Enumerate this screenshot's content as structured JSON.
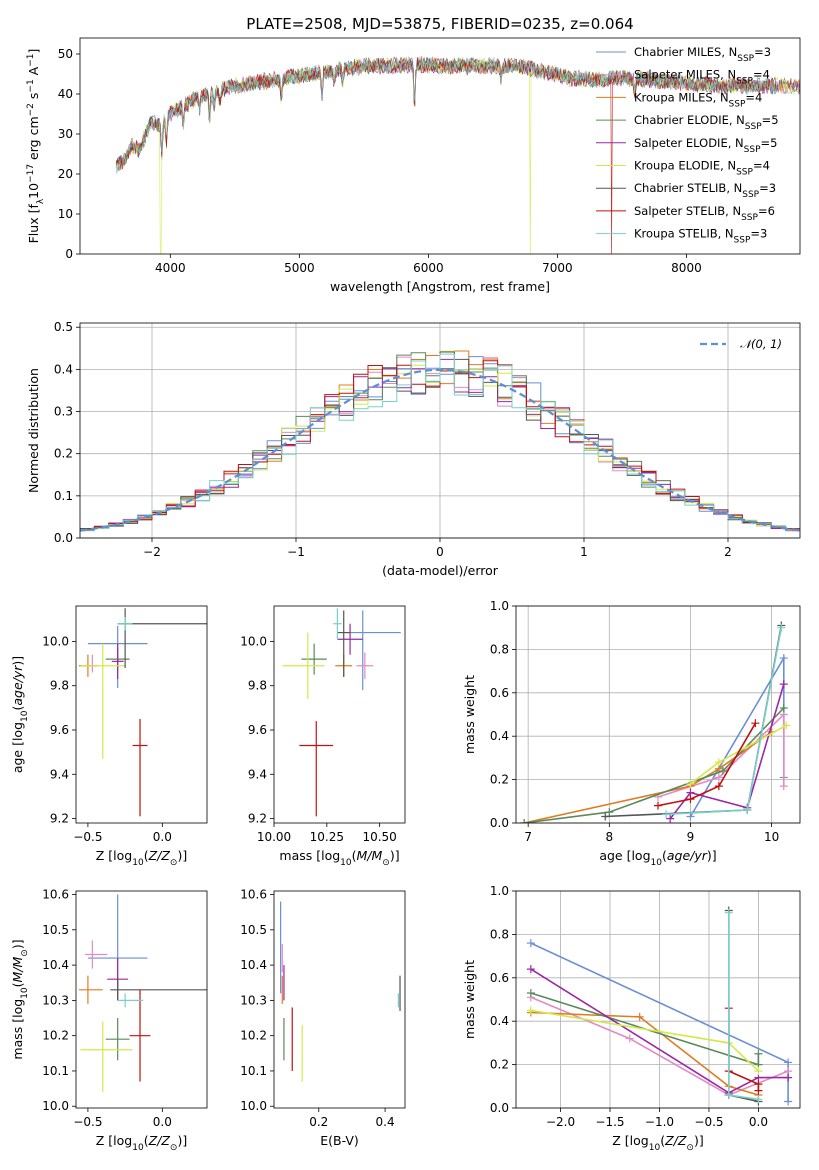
{
  "figure_title": "PLATE=2508, MJD=53875, FIBERID=0235, z=0.064",
  "colors": {
    "Chabrier MILES": "#6a8fd8",
    "Salpeter MILES": "#e28bc6",
    "Kroupa MILES": "#e07b22",
    "Chabrier ELODIE": "#5a8a5a",
    "Salpeter ELODIE": "#9c27a8",
    "Kroupa ELODIE": "#d4e84a",
    "Chabrier STELIB": "#555555",
    "Salpeter STELIB": "#c0110f",
    "Kroupa STELIB": "#77d1c9"
  },
  "chart_data": [
    {
      "id": "spectrum",
      "type": "line",
      "title": "PLATE=2508, MJD=53875, FIBERID=0235, z=0.064",
      "xlabel": "wavelength [Angstrom, rest frame]",
      "ylabel": "Flux [f_λ10^-17 erg cm^-2 s^-1 A^-1]",
      "xlim": [
        3300,
        8880
      ],
      "ylim": [
        0,
        54
      ],
      "xticks": [
        4000,
        5000,
        6000,
        7000,
        8000
      ],
      "yticks": [
        0,
        10,
        20,
        30,
        40,
        50
      ],
      "grid": false,
      "legend_position": "top-right",
      "legend": [
        {
          "name": "Chabrier MILES",
          "nssp": "3"
        },
        {
          "name": "Salpeter MILES",
          "nssp": "4"
        },
        {
          "name": "Kroupa MILES",
          "nssp": "4"
        },
        {
          "name": "Chabrier ELODIE",
          "nssp": "5"
        },
        {
          "name": "Salpeter ELODIE",
          "nssp": "5"
        },
        {
          "name": "Kroupa ELODIE",
          "nssp": "4"
        },
        {
          "name": "Chabrier STELIB",
          "nssp": "3"
        },
        {
          "name": "Salpeter STELIB",
          "nssp": "6"
        },
        {
          "name": "Kroupa STELIB",
          "nssp": "3"
        }
      ],
      "continuum": [
        [
          3580,
          22
        ],
        [
          3650,
          24
        ],
        [
          3700,
          27
        ],
        [
          3760,
          26
        ],
        [
          3850,
          33
        ],
        [
          3930,
          32
        ],
        [
          4000,
          35
        ],
        [
          4100,
          37
        ],
        [
          4200,
          39
        ],
        [
          4300,
          40
        ],
        [
          4500,
          42
        ],
        [
          4700,
          43
        ],
        [
          4900,
          44
        ],
        [
          5100,
          45
        ],
        [
          5300,
          46
        ],
        [
          5500,
          47
        ],
        [
          5700,
          47
        ],
        [
          5900,
          47.5
        ],
        [
          6100,
          47
        ],
        [
          6300,
          47
        ],
        [
          6500,
          47
        ],
        [
          6700,
          47
        ],
        [
          6900,
          45.5
        ],
        [
          7100,
          44
        ],
        [
          7300,
          43.5
        ],
        [
          7500,
          44
        ],
        [
          7700,
          43.5
        ],
        [
          7900,
          43
        ],
        [
          8100,
          42.5
        ],
        [
          8300,
          42
        ],
        [
          8500,
          42
        ],
        [
          8800,
          42
        ]
      ],
      "absorption_lines": [
        [
          3934,
          7
        ],
        [
          3969,
          6
        ],
        [
          4102,
          5
        ],
        [
          4227,
          3
        ],
        [
          4304,
          6
        ],
        [
          4340,
          4
        ],
        [
          4384,
          3
        ],
        [
          4861,
          5
        ],
        [
          5175,
          6
        ],
        [
          5270,
          3
        ],
        [
          5335,
          3
        ],
        [
          5893,
          10
        ],
        [
          6563,
          3
        ],
        [
          7600,
          3
        ]
      ]
    },
    {
      "id": "residuals",
      "type": "line",
      "xlabel": "(data-model)/error",
      "ylabel": "Normed distribution",
      "xlim": [
        -2.5,
        2.5
      ],
      "ylim": [
        0,
        0.51
      ],
      "xticks": [
        -2,
        -1,
        0,
        1,
        2
      ],
      "yticks": [
        0.0,
        0.1,
        0.2,
        0.3,
        0.4,
        0.5
      ],
      "grid": true,
      "legend": "𝒩(0, 1)",
      "legend_position": "top-right"
    },
    {
      "id": "age_vs_Z",
      "type": "scatter",
      "xlabel": "Z [log10(Z/Z⊙)]",
      "ylabel": "age [log10(age/yr)]",
      "xlim": [
        -0.58,
        0.3
      ],
      "ylim": [
        9.18,
        10.16
      ],
      "xticks": [
        -0.5,
        0.0
      ],
      "yticks": [
        9.2,
        9.4,
        9.6,
        9.8,
        10.0
      ],
      "points": [
        {
          "name": "Chabrier MILES",
          "x": -0.3,
          "y": 9.99,
          "xerr": [
            0.2,
            0.2
          ],
          "yerr": [
            0.2,
            0.08
          ]
        },
        {
          "name": "Salpeter MILES",
          "x": -0.47,
          "y": 9.89,
          "xerr": [
            0.05,
            0.03
          ],
          "yerr": [
            0.03,
            0.05
          ]
        },
        {
          "name": "Kroupa MILES",
          "x": -0.5,
          "y": 9.89,
          "xerr": [
            0.06,
            0.06
          ],
          "yerr": [
            0.05,
            0.05
          ]
        },
        {
          "name": "Chabrier ELODIE",
          "x": -0.3,
          "y": 9.92,
          "xerr": [
            0.08,
            0.08
          ],
          "yerr": [
            0.05,
            0.05
          ]
        },
        {
          "name": "Salpeter ELODIE",
          "x": -0.3,
          "y": 9.91,
          "xerr": [
            0.04,
            0.04
          ],
          "yerr": [
            0.08,
            0.08
          ]
        },
        {
          "name": "Kroupa ELODIE",
          "x": -0.4,
          "y": 9.89,
          "xerr": [
            0.15,
            0.15
          ],
          "yerr": [
            0.42,
            0.1
          ]
        },
        {
          "name": "Chabrier STELIB",
          "x": -0.25,
          "y": 10.08,
          "xerr": [
            0.05,
            0.55
          ],
          "yerr": [
            0.2,
            0.07
          ]
        },
        {
          "name": "Salpeter STELIB",
          "x": -0.15,
          "y": 9.53,
          "xerr": [
            0.05,
            0.05
          ],
          "yerr": [
            0.32,
            0.12
          ]
        },
        {
          "name": "Kroupa STELIB",
          "x": -0.25,
          "y": 10.08,
          "xerr": [
            0.05,
            0.05
          ],
          "yerr": [
            0.03,
            0.03
          ]
        }
      ]
    },
    {
      "id": "age_vs_mass",
      "type": "scatter",
      "xlabel": "mass [log10(M/M⊙)]",
      "ylabel": "",
      "xlim": [
        10.0,
        10.62
      ],
      "ylim": [
        9.18,
        10.16
      ],
      "xticks": [
        10.0,
        10.25,
        10.5
      ],
      "yticks": [
        9.2,
        9.4,
        9.6,
        9.8,
        10.0
      ],
      "points": [
        {
          "name": "Chabrier MILES",
          "x": 10.42,
          "y": 10.04,
          "xerr": [
            0.08,
            0.18
          ],
          "yerr": [
            0.26,
            0.1
          ]
        },
        {
          "name": "Salpeter MILES",
          "x": 10.43,
          "y": 9.89,
          "xerr": [
            0.04,
            0.04
          ],
          "yerr": [
            0.06,
            0.06
          ]
        },
        {
          "name": "Kroupa MILES",
          "x": 10.33,
          "y": 9.89,
          "xerr": [
            0.04,
            0.04
          ],
          "yerr": [
            0.05,
            0.05
          ]
        },
        {
          "name": "Chabrier ELODIE",
          "x": 10.19,
          "y": 9.92,
          "xerr": [
            0.06,
            0.06
          ],
          "yerr": [
            0.07,
            0.07
          ]
        },
        {
          "name": "Salpeter ELODIE",
          "x": 10.36,
          "y": 10.01,
          "xerr": [
            0.06,
            0.06
          ],
          "yerr": [
            0.07,
            0.07
          ]
        },
        {
          "name": "Kroupa ELODIE",
          "x": 10.16,
          "y": 9.89,
          "xerr": [
            0.12,
            0.08
          ],
          "yerr": [
            0.15,
            0.15
          ]
        },
        {
          "name": "Chabrier STELIB",
          "x": 10.33,
          "y": 10.04,
          "xerr": [
            0.03,
            0.03
          ],
          "yerr": [
            0.2,
            0.1
          ]
        },
        {
          "name": "Salpeter STELIB",
          "x": 10.2,
          "y": 9.53,
          "xerr": [
            0.08,
            0.08
          ],
          "yerr": [
            0.32,
            0.11
          ]
        },
        {
          "name": "Kroupa STELIB",
          "x": 10.3,
          "y": 10.08,
          "xerr": [
            0.02,
            0.02
          ],
          "yerr": [
            0.07,
            0.07
          ]
        }
      ]
    },
    {
      "id": "weight_vs_age",
      "type": "line",
      "xlabel": "age [log10(age/yr)]",
      "ylabel": "mass weight",
      "xlim": [
        6.85,
        10.35
      ],
      "ylim": [
        0,
        1
      ],
      "xticks": [
        7,
        8,
        9,
        10
      ],
      "yticks": [
        0.0,
        0.2,
        0.4,
        0.6,
        0.8,
        1.0
      ],
      "grid": true,
      "series": [
        {
          "name": "Chabrier MILES",
          "x": [
            9.0,
            10.15,
            10.15
          ],
          "y": [
            0.03,
            0.76,
            0.21
          ]
        },
        {
          "name": "Salpeter MILES",
          "x": [
            8.6,
            9.35,
            10.15,
            10.15
          ],
          "y": [
            0.12,
            0.21,
            0.5,
            0.17
          ]
        },
        {
          "name": "Kroupa MILES",
          "x": [
            6.95,
            9.0,
            9.35,
            10.0
          ],
          "y": [
            0.0,
            0.17,
            0.25,
            0.42
          ]
        },
        {
          "name": "Chabrier ELODIE",
          "x": [
            6.95,
            8.0,
            9.4,
            10.15
          ],
          "y": [
            0.0,
            0.05,
            0.24,
            0.53
          ]
        },
        {
          "name": "Salpeter ELODIE",
          "x": [
            8.75,
            9.0,
            9.7,
            10.15
          ],
          "y": [
            0.02,
            0.14,
            0.07,
            0.64
          ]
        },
        {
          "name": "Kroupa ELODIE",
          "x": [
            9.0,
            9.35,
            10.18
          ],
          "y": [
            0.18,
            0.28,
            0.45
          ]
        },
        {
          "name": "Chabrier STELIB",
          "x": [
            7.95,
            9.7,
            10.12
          ],
          "y": [
            0.03,
            0.06,
            0.91
          ]
        },
        {
          "name": "Salpeter STELIB",
          "x": [
            8.6,
            9.0,
            9.35,
            9.8
          ],
          "y": [
            0.08,
            0.11,
            0.17,
            0.46
          ]
        },
        {
          "name": "Kroupa STELIB",
          "x": [
            8.7,
            9.7,
            10.12
          ],
          "y": [
            0.04,
            0.06,
            0.9
          ]
        }
      ]
    },
    {
      "id": "mass_vs_Z",
      "type": "scatter",
      "xlabel": "Z [log10(Z/Z⊙)]",
      "ylabel": "mass [log10(M/M⊙)]",
      "xlim": [
        -0.58,
        0.3
      ],
      "ylim": [
        9.995,
        10.61
      ],
      "xticks": [
        -0.5,
        0.0
      ],
      "yticks": [
        10.0,
        10.1,
        10.2,
        10.3,
        10.4,
        10.5,
        10.6
      ],
      "points": [
        {
          "name": "Chabrier MILES",
          "x": -0.3,
          "y": 10.42,
          "xerr": [
            0.2,
            0.2
          ],
          "yerr": [
            0.08,
            0.18
          ]
        },
        {
          "name": "Salpeter MILES",
          "x": -0.47,
          "y": 10.43,
          "xerr": [
            0.05,
            0.1
          ],
          "yerr": [
            0.04,
            0.04
          ]
        },
        {
          "name": "Kroupa MILES",
          "x": -0.5,
          "y": 10.33,
          "xerr": [
            0.06,
            0.1
          ],
          "yerr": [
            0.04,
            0.04
          ]
        },
        {
          "name": "Chabrier ELODIE",
          "x": -0.3,
          "y": 10.19,
          "xerr": [
            0.08,
            0.08
          ],
          "yerr": [
            0.06,
            0.06
          ]
        },
        {
          "name": "Salpeter ELODIE",
          "x": -0.3,
          "y": 10.36,
          "xerr": [
            0.07,
            0.07
          ],
          "yerr": [
            0.06,
            0.06
          ]
        },
        {
          "name": "Kroupa ELODIE",
          "x": -0.4,
          "y": 10.16,
          "xerr": [
            0.15,
            0.2
          ],
          "yerr": [
            0.12,
            0.08
          ]
        },
        {
          "name": "Chabrier STELIB",
          "x": -0.3,
          "y": 10.33,
          "xerr": [
            0.05,
            0.6
          ],
          "yerr": [
            0.03,
            0.03
          ]
        },
        {
          "name": "Salpeter STELIB",
          "x": -0.15,
          "y": 10.2,
          "xerr": [
            0.07,
            0.07
          ],
          "yerr": [
            0.13,
            0.13
          ]
        },
        {
          "name": "Kroupa STELIB",
          "x": -0.25,
          "y": 10.3,
          "xerr": [
            0.05,
            0.12
          ],
          "yerr": [
            0.02,
            0.02
          ]
        }
      ]
    },
    {
      "id": "mass_vs_ebv",
      "type": "scatter",
      "xlabel": "E(B-V)",
      "ylabel": "",
      "xlim": [
        0.065,
        0.46
      ],
      "ylim": [
        9.995,
        10.61
      ],
      "xticks": [
        0.2,
        0.4
      ],
      "yticks": [
        10.0,
        10.1,
        10.2,
        10.3,
        10.4,
        10.5,
        10.6
      ],
      "points": [
        {
          "name": "Chabrier MILES",
          "x": 0.085,
          "y": 10.45,
          "xerr": [
            0.0,
            0.0
          ],
          "yerr": [
            0.13,
            0.13
          ]
        },
        {
          "name": "Salpeter MILES",
          "x": 0.09,
          "y": 10.42,
          "xerr": [
            0.0,
            0.0
          ],
          "yerr": [
            0.04,
            0.04
          ]
        },
        {
          "name": "Kroupa MILES",
          "x": 0.09,
          "y": 10.33,
          "xerr": [
            0.0,
            0.0
          ],
          "yerr": [
            0.04,
            0.04
          ]
        },
        {
          "name": "Chabrier ELODIE",
          "x": 0.095,
          "y": 10.19,
          "xerr": [
            0.0,
            0.0
          ],
          "yerr": [
            0.06,
            0.06
          ]
        },
        {
          "name": "Salpeter ELODIE",
          "x": 0.095,
          "y": 10.35,
          "xerr": [
            0.0,
            0.0
          ],
          "yerr": [
            0.05,
            0.05
          ]
        },
        {
          "name": "Kroupa ELODIE",
          "x": 0.15,
          "y": 10.15,
          "xerr": [
            0.0,
            0.0
          ],
          "yerr": [
            0.08,
            0.08
          ]
        },
        {
          "name": "Chabrier STELIB",
          "x": 0.445,
          "y": 10.32,
          "xerr": [
            0.0,
            0.0
          ],
          "yerr": [
            0.05,
            0.05
          ]
        },
        {
          "name": "Salpeter STELIB",
          "x": 0.12,
          "y": 10.19,
          "xerr": [
            0.0,
            0.0
          ],
          "yerr": [
            0.09,
            0.09
          ]
        },
        {
          "name": "Kroupa STELIB",
          "x": 0.44,
          "y": 10.3,
          "xerr": [
            0.0,
            0.0
          ],
          "yerr": [
            0.02,
            0.02
          ]
        }
      ]
    },
    {
      "id": "weight_vs_Z",
      "type": "line",
      "xlabel": "Z [log10(Z/Z⊙)]",
      "ylabel": "mass weight",
      "xlim": [
        -2.45,
        0.42
      ],
      "ylim": [
        0,
        1
      ],
      "xticks": [
        -2.0,
        -1.5,
        -1.0,
        -0.5,
        0.0
      ],
      "yticks": [
        0.0,
        0.2,
        0.4,
        0.6,
        0.8,
        1.0
      ],
      "grid": true,
      "series": [
        {
          "name": "Chabrier MILES",
          "x": [
            -2.3,
            0.3,
            0.3
          ],
          "y": [
            0.76,
            0.21,
            0.03
          ]
        },
        {
          "name": "Salpeter MILES",
          "x": [
            -2.3,
            -1.3,
            -0.3,
            0.3
          ],
          "y": [
            0.51,
            0.32,
            0.06,
            0.17
          ]
        },
        {
          "name": "Kroupa MILES",
          "x": [
            -2.3,
            -1.2,
            -0.3,
            0.0
          ],
          "y": [
            0.44,
            0.42,
            0.1,
            0.06
          ]
        },
        {
          "name": "Chabrier ELODIE",
          "x": [
            -2.3,
            0.0,
            0.0
          ],
          "y": [
            0.53,
            0.2,
            0.25
          ]
        },
        {
          "name": "Salpeter ELODIE",
          "x": [
            -2.3,
            -0.3,
            0.0,
            0.3
          ],
          "y": [
            0.64,
            0.07,
            0.14,
            0.14
          ]
        },
        {
          "name": "Kroupa ELODIE",
          "x": [
            -2.3,
            -0.3,
            0.0
          ],
          "y": [
            0.45,
            0.3,
            0.17
          ]
        },
        {
          "name": "Chabrier STELIB",
          "x": [
            -0.3,
            -0.3,
            0.0
          ],
          "y": [
            0.91,
            0.06,
            0.03
          ]
        },
        {
          "name": "Salpeter STELIB",
          "x": [
            -0.3,
            -0.3,
            0.0,
            0.0
          ],
          "y": [
            0.46,
            0.17,
            0.11,
            0.08
          ]
        },
        {
          "name": "Kroupa STELIB",
          "x": [
            -0.3,
            -0.3,
            0.0
          ],
          "y": [
            0.9,
            0.06,
            0.04
          ]
        }
      ]
    }
  ]
}
